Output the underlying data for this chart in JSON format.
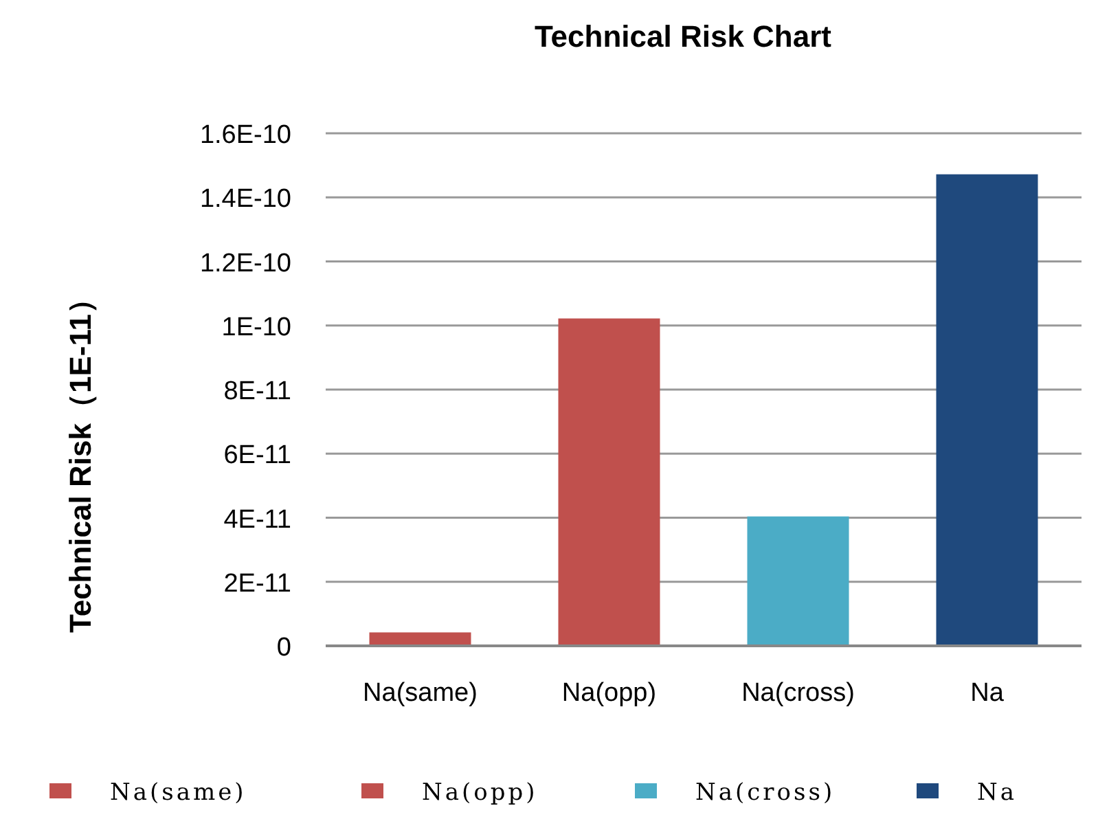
{
  "chart_data": {
    "type": "bar",
    "title": "Technical Risk Chart",
    "ylabel": "Technical Risk（1E-11）",
    "categories": [
      "Na(same)",
      "Na(opp)",
      "Na(cross)",
      "Na"
    ],
    "stacked": true,
    "series": [
      {
        "name": "Na(same)",
        "color": "#c0504d",
        "values": [
          4.2e-12,
          null,
          null,
          null
        ]
      },
      {
        "name": "Na(opp)",
        "color": "#c0504d",
        "values": [
          null,
          1.022e-10,
          null,
          null
        ]
      },
      {
        "name": "Na(cross)",
        "color": "#4bacc6",
        "values": [
          null,
          null,
          4.04e-11,
          null
        ]
      },
      {
        "name": "Na",
        "color": "#1f497d",
        "values": [
          null,
          null,
          null,
          1.472e-10
        ]
      }
    ],
    "ylim": [
      0,
      1.6e-10
    ],
    "yticks": [
      0,
      {
        "value": 2e-11,
        "label": "2E-11"
      },
      {
        "value": 4e-11,
        "label": "4E-11"
      },
      {
        "value": 6e-11,
        "label": "6E-11"
      },
      {
        "value": 8e-11,
        "label": "8E-11"
      },
      {
        "value": 1e-10,
        "label": "1E-10"
      },
      {
        "value": 1.2e-10,
        "label": "1.2E-10"
      },
      {
        "value": 1.4e-10,
        "label": "1.4E-10"
      },
      {
        "value": 1.6e-10,
        "label": "1.6E-10"
      }
    ],
    "grid": "y",
    "legend": "bottom"
  }
}
